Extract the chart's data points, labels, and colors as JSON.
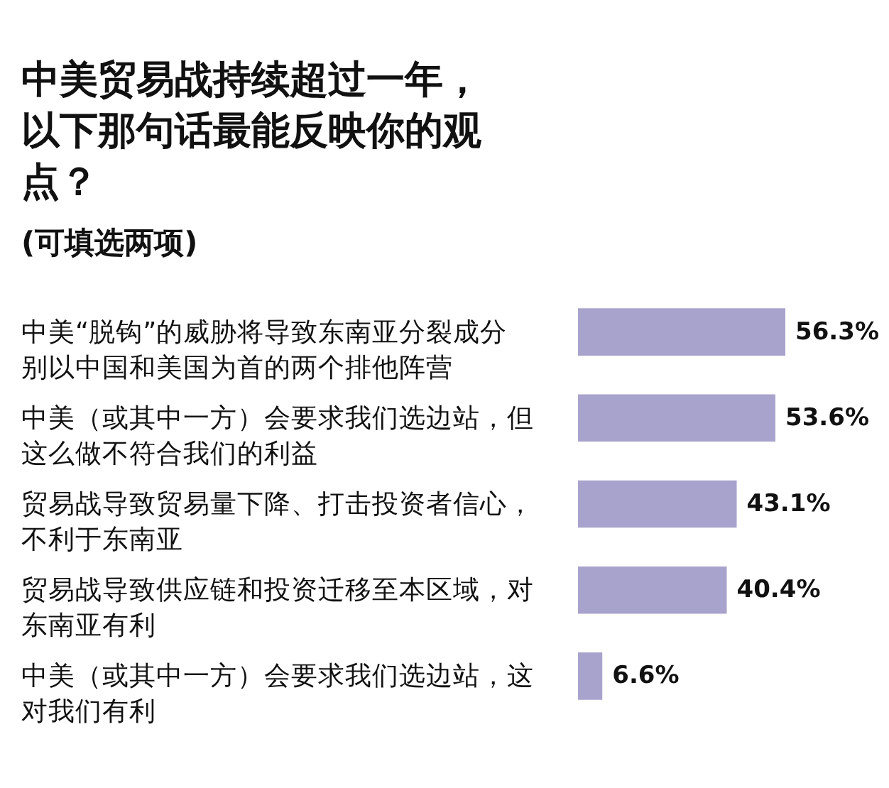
{
  "chart_data": {
    "type": "bar",
    "orientation": "horizontal",
    "title": "中美贸易战持续超过一年，以下那句话最能反映你的观点？",
    "subtitle": "(可填选两项)",
    "categories": [
      "中美“脱钩”的威胁将导致东南亚分裂成分别以中国和美国为首的两个排他阵营",
      "中美（或其中一方）会要求我们选边站，但这么做不符合我们的利益",
      "贸易战导致贸易量下降、打击投资者信心，不利于东南亚",
      "贸易战导致供应链和投资迁移至本区域，对东南亚有利",
      "中美（或其中一方）会要求我们选边站，这对我们有利"
    ],
    "values": [
      56.3,
      53.6,
      43.1,
      40.4,
      6.6
    ],
    "value_labels": [
      "56.3%",
      "53.6%",
      "43.1%",
      "40.4%",
      "6.6%"
    ],
    "color": "#a8a3cc"
  }
}
